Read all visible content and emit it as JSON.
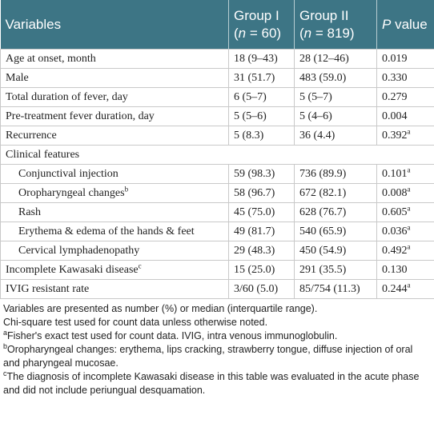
{
  "table": {
    "header": [
      {
        "text": "Variables"
      },
      {
        "text": "Group I",
        "sub": {
          "pre": "(",
          "italic": "n",
          "post": " = 60)"
        }
      },
      {
        "text": "Group II",
        "sub": {
          "pre": "(",
          "italic": "n",
          "post": " = 819)"
        }
      },
      {
        "italic": "P",
        "post": " value"
      }
    ],
    "rows": [
      {
        "cells": [
          "Age at onset, month",
          "18 (9–43)",
          "28 (12–46)",
          "0.019"
        ]
      },
      {
        "cells": [
          "Male",
          "31 (51.7)",
          "483 (59.0)",
          "0.330"
        ]
      },
      {
        "cells": [
          "Total duration of fever, day",
          "6 (5–7)",
          "5 (5–7)",
          "0.279"
        ]
      },
      {
        "cells": [
          "Pre-treatment fever duration, day",
          "5 (5–6)",
          "5 (4–6)",
          "0.004"
        ]
      },
      {
        "cells": [
          "Recurrence",
          "5 (8.3)",
          "36 (4.4)",
          {
            "text": "0.392",
            "sup": "a"
          }
        ]
      },
      {
        "label": "Clinical features",
        "rows": [
          {
            "cells": [
              "Conjunctival injection",
              "59 (98.3)",
              "736 (89.9)",
              {
                "text": "0.101",
                "sup": "a"
              }
            ]
          },
          {
            "cells": [
              {
                "text": "Oropharyngeal changes",
                "sup": "b"
              },
              "58 (96.7)",
              "672 (82.1)",
              {
                "text": "0.008",
                "sup": "a"
              }
            ]
          },
          {
            "cells": [
              "Rash",
              "45 (75.0)",
              "628 (76.7)",
              {
                "text": "0.605",
                "sup": "a"
              }
            ]
          },
          {
            "cells": [
              "Erythema & edema of the hands & feet",
              "49 (81.7)",
              "540 (65.9)",
              {
                "text": "0.036",
                "sup": "a"
              }
            ]
          },
          {
            "cells": [
              "Cervical lymphadenopathy",
              "29 (48.3)",
              "450 (54.9)",
              {
                "text": "0.492",
                "sup": "a"
              }
            ]
          }
        ]
      },
      {
        "cells": [
          {
            "text": "Incomplete Kawasaki disease",
            "sup": "c"
          },
          "15 (25.0)",
          "291 (35.5)",
          "0.130"
        ]
      },
      {
        "cells": [
          "IVIG resistant rate",
          "3/60 (5.0)",
          "85/754 (11.3)",
          {
            "text": "0.244",
            "sup": "a"
          }
        ]
      }
    ]
  },
  "footnotes": [
    {
      "text": "Variables are presented as number (%) or median (interquartile range)."
    },
    {
      "text": "Chi-square test used for count data unless otherwise noted."
    },
    {
      "mark": "a",
      "text": "Fisher's exact test used for count data. IVIG, intra venous immunoglobulin."
    },
    {
      "mark": "b",
      "text": "Oropharyngeal changes: erythema, lips cracking, strawberry tongue, diffuse injection of oral and pharyngeal mucosae."
    },
    {
      "mark": "c",
      "text": "The diagnosis of incomplete Kawasaki disease in this table was evaluated in the acute phase and did not include periungual desquamation."
    }
  ]
}
